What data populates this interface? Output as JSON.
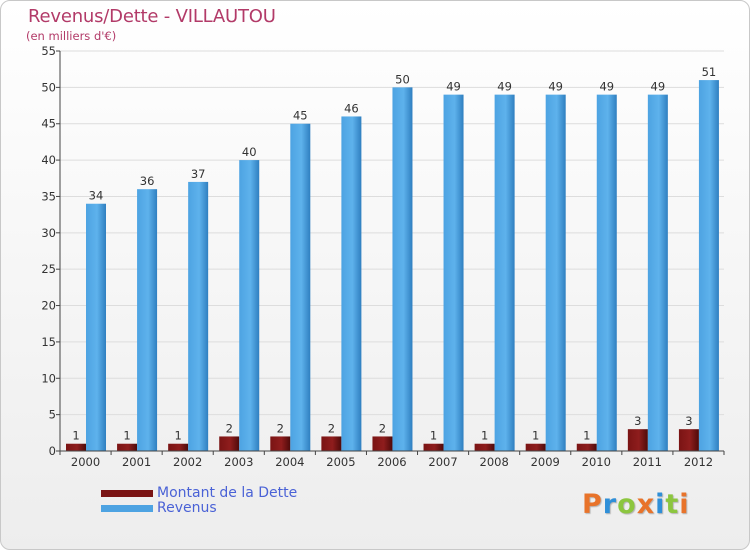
{
  "title": "Revenus/Dette - VILLAUTOU",
  "subtitle": "(en milliers d'€)",
  "colors": {
    "debt": "#7a1414",
    "debt_dark": "#4e0a0a",
    "revenue": "#4da3e2",
    "revenue_dark": "#2f7fc0",
    "grid": "#dddddd",
    "axis": "#444444"
  },
  "legend": {
    "debt_label": "Montant de la Dette",
    "revenue_label": "Revenus"
  },
  "logo": {
    "letters": [
      "P",
      "r",
      "o",
      "x",
      "i",
      "t",
      "i"
    ],
    "colors": [
      "#e8732a",
      "#2f8fd8",
      "#8cc63f",
      "#e8732a",
      "#2f8fd8",
      "#8cc63f",
      "#e8732a"
    ]
  },
  "chart_data": {
    "type": "bar",
    "title": "Revenus/Dette - VILLAUTOU",
    "subtitle": "(en milliers d'€)",
    "xlabel": "",
    "ylabel": "",
    "ylim": [
      0,
      55
    ],
    "yticks": [
      0,
      5,
      10,
      15,
      20,
      25,
      30,
      35,
      40,
      45,
      50,
      55
    ],
    "grid": true,
    "legend_position": "bottom-left",
    "categories": [
      "2000",
      "2001",
      "2002",
      "2003",
      "2004",
      "2005",
      "2006",
      "2007",
      "2008",
      "2009",
      "2010",
      "2011",
      "2012"
    ],
    "series": [
      {
        "name": "Montant de la Dette",
        "values": [
          1,
          1,
          1,
          2,
          2,
          2,
          2,
          1,
          1,
          1,
          1,
          3,
          3
        ]
      },
      {
        "name": "Revenus",
        "values": [
          34,
          36,
          37,
          40,
          45,
          46,
          50,
          49,
          49,
          49,
          49,
          49,
          51
        ]
      }
    ]
  }
}
